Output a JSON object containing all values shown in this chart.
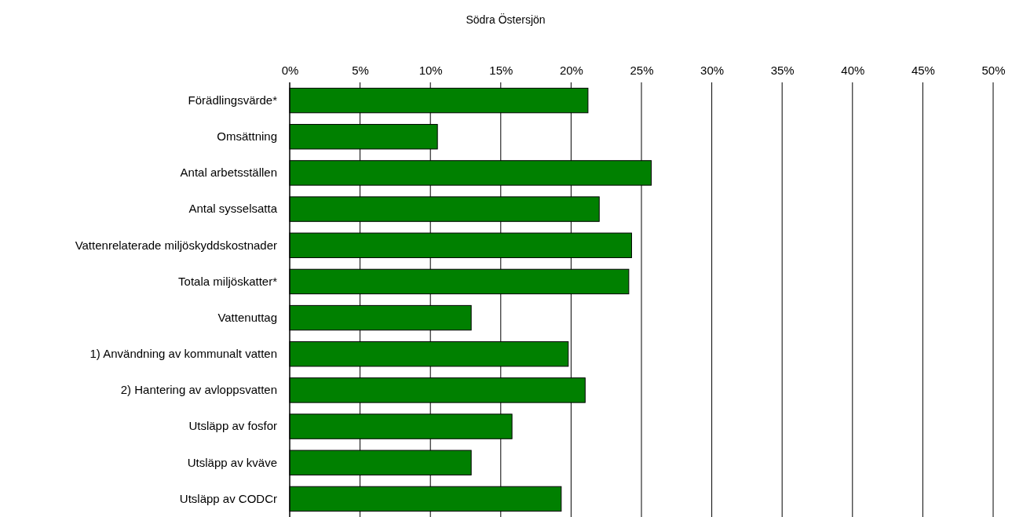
{
  "chart_data": {
    "type": "bar",
    "orientation": "horizontal",
    "title": "Södra Östersjön",
    "categories": [
      "Förädlingsvärde*",
      "Omsättning",
      "Antal arbetsställen",
      "Antal sysselsatta",
      "Vattenrelaterade miljöskyddskostnader",
      "Totala miljöskatter*",
      "Vattenuttag",
      "1) Användning av kommunalt vatten",
      "2) Hantering av avloppsvatten",
      "Utsläpp av fosfor",
      "Utsläpp av kväve",
      "Utsläpp av CODCr"
    ],
    "values": [
      21.2,
      10.5,
      25.7,
      22.0,
      24.3,
      24.1,
      12.9,
      19.8,
      21.0,
      15.8,
      12.9,
      19.3
    ],
    "color": "#008000",
    "xlim": [
      0,
      50
    ],
    "xticks": [
      {
        "value": 0,
        "label": "0%"
      },
      {
        "value": 5,
        "label": "5%"
      },
      {
        "value": 10,
        "label": "10%"
      },
      {
        "value": 15,
        "label": "15%"
      },
      {
        "value": 20,
        "label": "20%"
      },
      {
        "value": 25,
        "label": "25%"
      },
      {
        "value": 30,
        "label": "30%"
      },
      {
        "value": 35,
        "label": "35%"
      },
      {
        "value": 40,
        "label": "40%"
      },
      {
        "value": 45,
        "label": "45%"
      },
      {
        "value": 50,
        "label": "50%"
      }
    ],
    "grid": "x"
  }
}
